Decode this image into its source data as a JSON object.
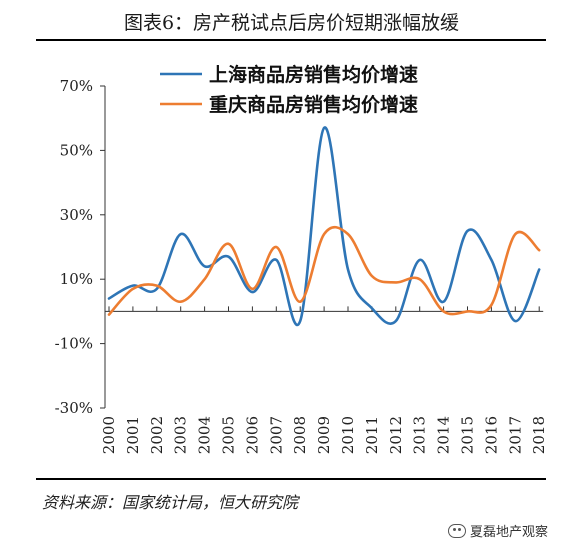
{
  "header": {
    "title": "图表6：房产税试点后房价短期涨幅放缓"
  },
  "footer": {
    "source": "资料来源：国家统计局，恒大研究院",
    "watermark": "夏磊地产观察"
  },
  "chart_data": {
    "type": "line",
    "x": [
      "2000",
      "2001",
      "2002",
      "2003",
      "2004",
      "2005",
      "2006",
      "2007",
      "2008",
      "2009",
      "2010",
      "2011",
      "2012",
      "2013",
      "2014",
      "2015",
      "2016",
      "2017",
      "2018"
    ],
    "yticks": [
      "70%",
      "50%",
      "30%",
      "10%",
      "-10%",
      "-30%"
    ],
    "ylim": [
      -30,
      70
    ],
    "series": [
      {
        "name": "上海商品房销售均价增速",
        "color": "#2e75b6",
        "values": [
          4,
          8,
          7,
          24,
          14,
          17,
          6,
          16,
          -3,
          57,
          13,
          1,
          -3,
          16,
          3,
          25,
          16,
          -3,
          13
        ]
      },
      {
        "name": "重庆商品房销售均价增速",
        "color": "#ed7d31",
        "values": [
          -1,
          7,
          8,
          3,
          10,
          21,
          7,
          20,
          3,
          24,
          24,
          11,
          9,
          10,
          0,
          0,
          2,
          24,
          19
        ]
      }
    ],
    "legend": "top-center"
  }
}
